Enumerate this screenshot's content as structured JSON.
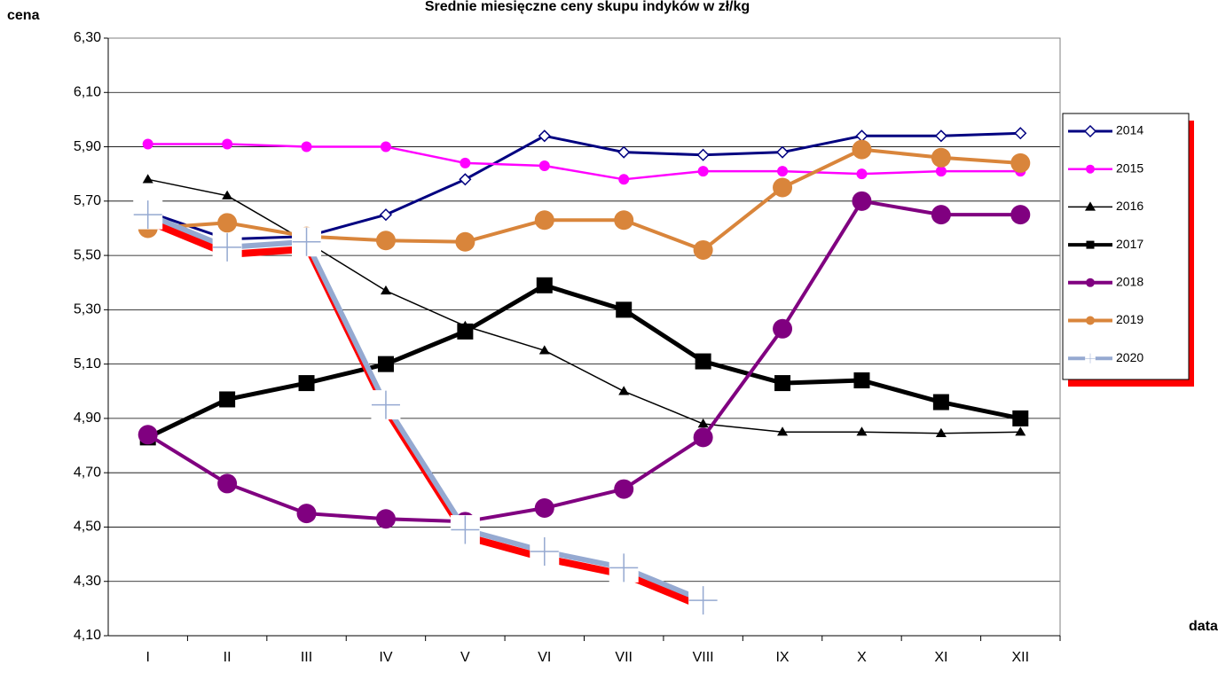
{
  "chart_data": {
    "type": "line",
    "title": "Średnie miesięczne ceny skupu indyków w zł/kg",
    "y_label": "cena",
    "x_label": "data",
    "categories": [
      "I",
      "II",
      "III",
      "IV",
      "V",
      "VI",
      "VII",
      "VIII",
      "IX",
      "X",
      "XI",
      "XII"
    ],
    "ylim": [
      4.1,
      6.3
    ],
    "yticks": [
      {
        "value": 4.1,
        "label": "4,10"
      },
      {
        "value": 4.3,
        "label": "4,30"
      },
      {
        "value": 4.5,
        "label": "4,50"
      },
      {
        "value": 4.7,
        "label": "4,70"
      },
      {
        "value": 4.9,
        "label": "4,90"
      },
      {
        "value": 5.1,
        "label": "5,10"
      },
      {
        "value": 5.3,
        "label": "5,30"
      },
      {
        "value": 5.5,
        "label": "5,50"
      },
      {
        "value": 5.7,
        "label": "5,70"
      },
      {
        "value": 5.9,
        "label": "5,90"
      },
      {
        "value": 6.1,
        "label": "6,10"
      },
      {
        "value": 6.3,
        "label": "6,30"
      }
    ],
    "grid": true,
    "legend": "right",
    "series": [
      {
        "name": "2014",
        "color": "#000080",
        "marker": "diamond",
        "values": [
          5.66,
          5.56,
          5.57,
          5.65,
          5.78,
          5.94,
          5.88,
          5.87,
          5.88,
          5.94,
          5.94,
          5.95
        ]
      },
      {
        "name": "2015",
        "color": "#ff00ff",
        "marker": "circle",
        "values": [
          5.91,
          5.91,
          5.9,
          5.9,
          5.84,
          5.83,
          5.78,
          5.81,
          5.81,
          5.8,
          5.81,
          5.81
        ]
      },
      {
        "name": "2016",
        "color": "#000000",
        "marker": "triangle",
        "values": [
          5.78,
          5.72,
          5.55,
          5.37,
          5.24,
          5.15,
          5.0,
          4.88,
          4.85,
          4.85,
          4.845,
          4.85
        ]
      },
      {
        "name": "2017",
        "color": "#000000",
        "marker": "square",
        "values": [
          4.83,
          4.97,
          5.03,
          5.1,
          5.22,
          5.39,
          5.3,
          5.11,
          5.03,
          5.04,
          4.96,
          4.9
        ]
      },
      {
        "name": "2018",
        "color": "#800080",
        "marker": "circle",
        "values": [
          4.84,
          4.66,
          4.55,
          4.53,
          4.52,
          4.57,
          4.64,
          4.83,
          5.23,
          5.7,
          5.65,
          5.65
        ]
      },
      {
        "name": "2019",
        "color": "#d9853b",
        "marker": "circle",
        "values": [
          5.6,
          5.62,
          5.57,
          5.555,
          5.55,
          5.63,
          5.63,
          5.52,
          5.75,
          5.89,
          5.86,
          5.84
        ]
      },
      {
        "name": "2020",
        "color": "#95a9d1",
        "marker": "plus",
        "values": [
          5.65,
          5.53,
          5.55,
          4.95,
          4.49,
          4.41,
          4.35,
          4.23,
          null,
          null,
          null,
          null
        ]
      }
    ]
  }
}
